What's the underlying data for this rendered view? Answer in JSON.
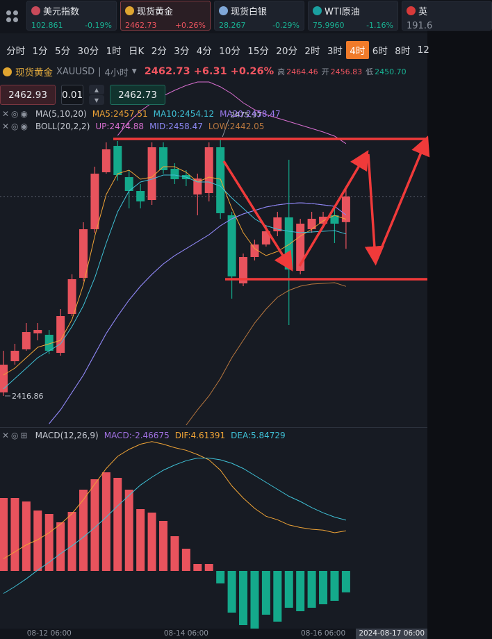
{
  "tickers": [
    {
      "name": "美元指数",
      "price": "102.861",
      "change": "-0.19%"
    },
    {
      "name": "现货黄金",
      "price": "2462.73",
      "change": "+0.26%"
    },
    {
      "name": "现货白银",
      "price": "28.267",
      "change": "-0.29%"
    },
    {
      "name": "WTI原油",
      "price": "75.9960",
      "change": "-1.16%"
    },
    {
      "name": "英",
      "price": "191.6"
    }
  ],
  "active_ticker": 1,
  "timeframes": [
    "分时",
    "1分",
    "5分",
    "30分",
    "1时",
    "日K",
    "2分",
    "3分",
    "4分",
    "10分",
    "15分",
    "20分",
    "2时",
    "3时",
    "4时",
    "6时",
    "8时",
    "12"
  ],
  "active_timeframe": 14,
  "quote": {
    "name": "现货黄金",
    "code": "XAUUSD",
    "period": "4小时",
    "price": "2462.73",
    "change": "+6.31",
    "change_percent": "+0.26%",
    "high_label": "高",
    "high": "2464.46",
    "open_label": "开",
    "open": "2456.83",
    "low_label": "低",
    "low": "2450.70"
  },
  "order": {
    "sell": "2462.93",
    "quantity": "0.01",
    "buy": "2462.73"
  },
  "chart_data": [
    {
      "type": "candlestick",
      "categories": [
        null,
        null,
        null,
        null,
        "08-12 06:00",
        null,
        null,
        null,
        null,
        null,
        null,
        null,
        null,
        null,
        null,
        null,
        "08-14 06:00",
        null,
        null,
        null,
        null,
        null,
        null,
        null,
        null,
        null,
        null,
        null,
        "08-16 06:00",
        null,
        null
      ],
      "open": [
        2417.66,
        2424.84,
        2427.56,
        2431.24,
        2430.92,
        2426.76,
        2435.71,
        2444.02,
        2455.2,
        2468.3,
        2474.37,
        2467.18,
        2463.99,
        2461.91,
        2474.05,
        2469.1,
        2467.66,
        2463.19,
        2463.51,
        2474.05,
        2458.4,
        2442.74,
        2448.81,
        2451.69,
        2454.72,
        2457.92,
        2445.62,
        2455.2,
        2456.48,
        2458.4,
        2456.83
      ],
      "high": [
        2427.24,
        2428.84,
        2433.63,
        2433.63,
        2432.03,
        2436.83,
        2444.82,
        2456.8,
        2469.58,
        2475.17,
        2475.49,
        2468.78,
        2465.59,
        2475.17,
        2475.17,
        2470.38,
        2468.78,
        2467.98,
        2475.17,
        2475.97,
        2459.2,
        2449.61,
        2452.8,
        2456.0,
        2459.2,
        2471.18,
        2457.6,
        2459.2,
        2459.2,
        2459.99,
        2464.46
      ],
      "low": [
        2416.86,
        2424.04,
        2427.24,
        2429.64,
        2426.44,
        2426.12,
        2435.23,
        2443.22,
        2454.4,
        2467.98,
        2466.38,
        2459.99,
        2459.99,
        2460.79,
        2467.98,
        2465.59,
        2465.11,
        2458.4,
        2461.59,
        2457.6,
        2439.23,
        2442.1,
        2448.01,
        2451.21,
        2453.6,
        2433.15,
        2444.82,
        2454.4,
        2456.0,
        2452.01,
        2450.7
      ],
      "close": [
        2424.04,
        2427.24,
        2431.55,
        2432.03,
        2427.24,
        2435.23,
        2443.7,
        2455.2,
        2467.98,
        2473.57,
        2467.66,
        2463.99,
        2461.59,
        2474.05,
        2468.78,
        2466.7,
        2466.7,
        2466.86,
        2474.05,
        2458.88,
        2444.34,
        2448.81,
        2451.69,
        2454.72,
        2457.92,
        2445.93,
        2456.48,
        2457.6,
        2458.08,
        2456.48,
        2462.73
      ],
      "ylim": [
        2409.67,
        2489.55
      ],
      "up_color": "#e8535d",
      "down_color": "#14a98b",
      "high_label": "2475.97",
      "low_label": "2416.86",
      "indicator_groups": [
        "MA(5,10,20)",
        "BOLL(20,2,2)"
      ],
      "series": [
        {
          "name": "MA5:2457.51",
          "group": 0,
          "color": "#f0a436",
          "values": [
            2421.65,
            2423.25,
            2425.65,
            2428.04,
            2428.84,
            2429.64,
            2434.43,
            2442.42,
            2453.6,
            2463.19,
            2467.98,
            2468.78,
            2466.7,
            2467.18,
            2469.58,
            2469.58,
            2468.3,
            2466.06,
            2467.18,
            2466.7,
            2459.99,
            2454.4,
            2450.73,
            2449.13,
            2450.09,
            2451.69,
            2453.6,
            2455.2,
            2457.12,
            2458.4,
            2457.51
          ]
        },
        {
          "name": "MA10:2454.12",
          "group": 0,
          "color": "#3fc1d6",
          "values": [
            2418.46,
            2420.85,
            2423.25,
            2425.65,
            2427.24,
            2428.84,
            2432.83,
            2437.63,
            2444.02,
            2452.01,
            2459.2,
            2463.99,
            2466.06,
            2466.7,
            2467.66,
            2467.66,
            2467.18,
            2466.06,
            2466.06,
            2465.11,
            2462.39,
            2459.99,
            2457.6,
            2456.0,
            2455.2,
            2454.72,
            2454.4,
            2454.56,
            2454.72,
            2454.88,
            2454.12
          ]
        },
        {
          "name": "MA20:2458.47",
          "group": 0,
          "color": "#9c7bf0",
          "values": [
            null,
            null,
            null,
            null,
            2410.47,
            2413.66,
            2417.66,
            2421.65,
            2426.44,
            2431.24,
            2435.23,
            2438.91,
            2442.1,
            2444.82,
            2447.21,
            2449.13,
            2450.73,
            2452.33,
            2453.92,
            2456.0,
            2457.6,
            2458.72,
            2459.52,
            2460.31,
            2460.79,
            2461.11,
            2461.27,
            2461.11,
            2460.79,
            2460.47,
            2458.47
          ]
        },
        {
          "name": "UP:2474.88",
          "group": 1,
          "color": "#d86fd0",
          "values": [
            null,
            null,
            null,
            null,
            null,
            null,
            null,
            null,
            null,
            null,
            2476.77,
            2479.96,
            2482.36,
            2484.28,
            2485.88,
            2487.15,
            2488.27,
            2489.07,
            2489.07,
            2487.95,
            2486.35,
            2484.28,
            2482.68,
            2481.56,
            2480.76,
            2479.96,
            2479.17,
            2478.37,
            2477.57,
            2476.61,
            2474.88
          ]
        },
        {
          "name": "MID:2458.47",
          "group": 1,
          "color": "#8a86f0",
          "values": [
            null,
            null,
            null,
            null,
            2410.47,
            2413.66,
            2417.66,
            2421.65,
            2426.44,
            2431.24,
            2435.23,
            2438.91,
            2442.1,
            2444.82,
            2447.21,
            2449.13,
            2450.73,
            2452.33,
            2453.92,
            2456.0,
            2457.6,
            2458.72,
            2459.52,
            2460.31,
            2460.79,
            2461.11,
            2461.27,
            2461.11,
            2460.79,
            2460.47,
            2458.47
          ]
        },
        {
          "name": "LOW:2442.05",
          "group": 1,
          "color": "#b8773e",
          "values": [
            null,
            null,
            null,
            null,
            null,
            null,
            null,
            null,
            null,
            null,
            null,
            null,
            null,
            null,
            null,
            null,
            2410.15,
            2413.66,
            2416.86,
            2420.85,
            2425.65,
            2429.64,
            2433.63,
            2436.83,
            2439.55,
            2441.14,
            2442.1,
            2442.58,
            2442.74,
            2442.9,
            2442.05
          ]
        }
      ],
      "cursor_label": "2024-08-17 06:00"
    },
    {
      "type": "bar",
      "title": "MACD(12,26,9)",
      "value_name": "MACD:-2.46675",
      "value_name_color": "#a070e0",
      "values": [
        8.4,
        8.4,
        8.0,
        6.96,
        6.56,
        5.6,
        6.8,
        9.36,
        10.56,
        11.36,
        10.72,
        9.36,
        7.12,
        6.72,
        5.76,
        4.0,
        2.56,
        0.8,
        0.8,
        -1.44,
        -4.8,
        -6.24,
        -6.64,
        -5.04,
        -5.84,
        -4.24,
        -4.64,
        -4.24,
        -3.84,
        -3.44,
        -2.46675
      ],
      "up_color": "#e8535d",
      "down_color": "#14a98b",
      "ylim": [
        -6.64,
        16.56
      ],
      "series": [
        {
          "name": "DIF:4.61391",
          "color": "#f0a436",
          "values": [
            1.4,
            2.2,
            3.0,
            3.6,
            4.4,
            5.4,
            6.6,
            8.2,
            10.0,
            11.8,
            13.2,
            14.0,
            14.6,
            14.9,
            14.6,
            14.2,
            13.9,
            13.4,
            12.8,
            11.6,
            9.8,
            8.4,
            7.2,
            6.3,
            5.9,
            5.3,
            5.0,
            4.8,
            4.7,
            4.4,
            4.61391
          ]
        },
        {
          "name": "DEA:5.84729",
          "color": "#3fc1d6",
          "values": [
            -2.6,
            -1.8,
            -0.9,
            0.1,
            1.0,
            2.0,
            2.9,
            3.9,
            5.0,
            6.2,
            7.5,
            8.7,
            9.9,
            10.8,
            11.6,
            12.2,
            12.7,
            13.0,
            13.0,
            12.8,
            12.4,
            11.8,
            11.0,
            10.2,
            9.4,
            8.6,
            8.0,
            7.3,
            6.7,
            6.2,
            5.84729
          ]
        }
      ]
    }
  ]
}
